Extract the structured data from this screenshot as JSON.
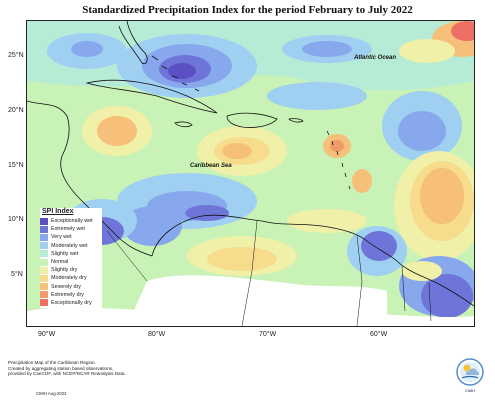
{
  "title": "Standardized Precipitation Index for the period February to July 2022",
  "map": {
    "lat_labels": [
      "25°N",
      "20°N",
      "15°N",
      "10°N",
      "5°N"
    ],
    "lon_labels": [
      "90°W",
      "80°W",
      "70°W",
      "60°W"
    ],
    "labels": {
      "atlantic": "Atlantic Ocean",
      "caribbean": "Caribbean Sea"
    }
  },
  "legend": {
    "title": "SPI Index",
    "items": [
      {
        "label": "Exceptionally wet",
        "color": "#5b4fc4"
      },
      {
        "label": "Extremely wet",
        "color": "#6f75d8"
      },
      {
        "label": "Very wet",
        "color": "#88a8ee"
      },
      {
        "label": "Moderately wet",
        "color": "#9fd0f2"
      },
      {
        "label": "Slightly wet",
        "color": "#b6ecd6"
      },
      {
        "label": "Normal",
        "color": "#c9f2b6"
      },
      {
        "label": "Slightly dry",
        "color": "#f0f0a8"
      },
      {
        "label": "Moderately dry",
        "color": "#f6dc8c"
      },
      {
        "label": "Severely dry",
        "color": "#f6c07a"
      },
      {
        "label": "Extremely dry",
        "color": "#f29a6a"
      },
      {
        "label": "Exceptionally dry",
        "color": "#ee6f66"
      }
    ]
  },
  "footer": {
    "note_line1": "Precipitation Map of the Caribbean Region.",
    "note_line2": "Created by aggregating station based observations,",
    "note_line3": "provided by CariCOF, with NCEP/NCAR Reanalysis Data.",
    "credit": "CIMH Aug-2022",
    "logo_text": "CIMH"
  }
}
